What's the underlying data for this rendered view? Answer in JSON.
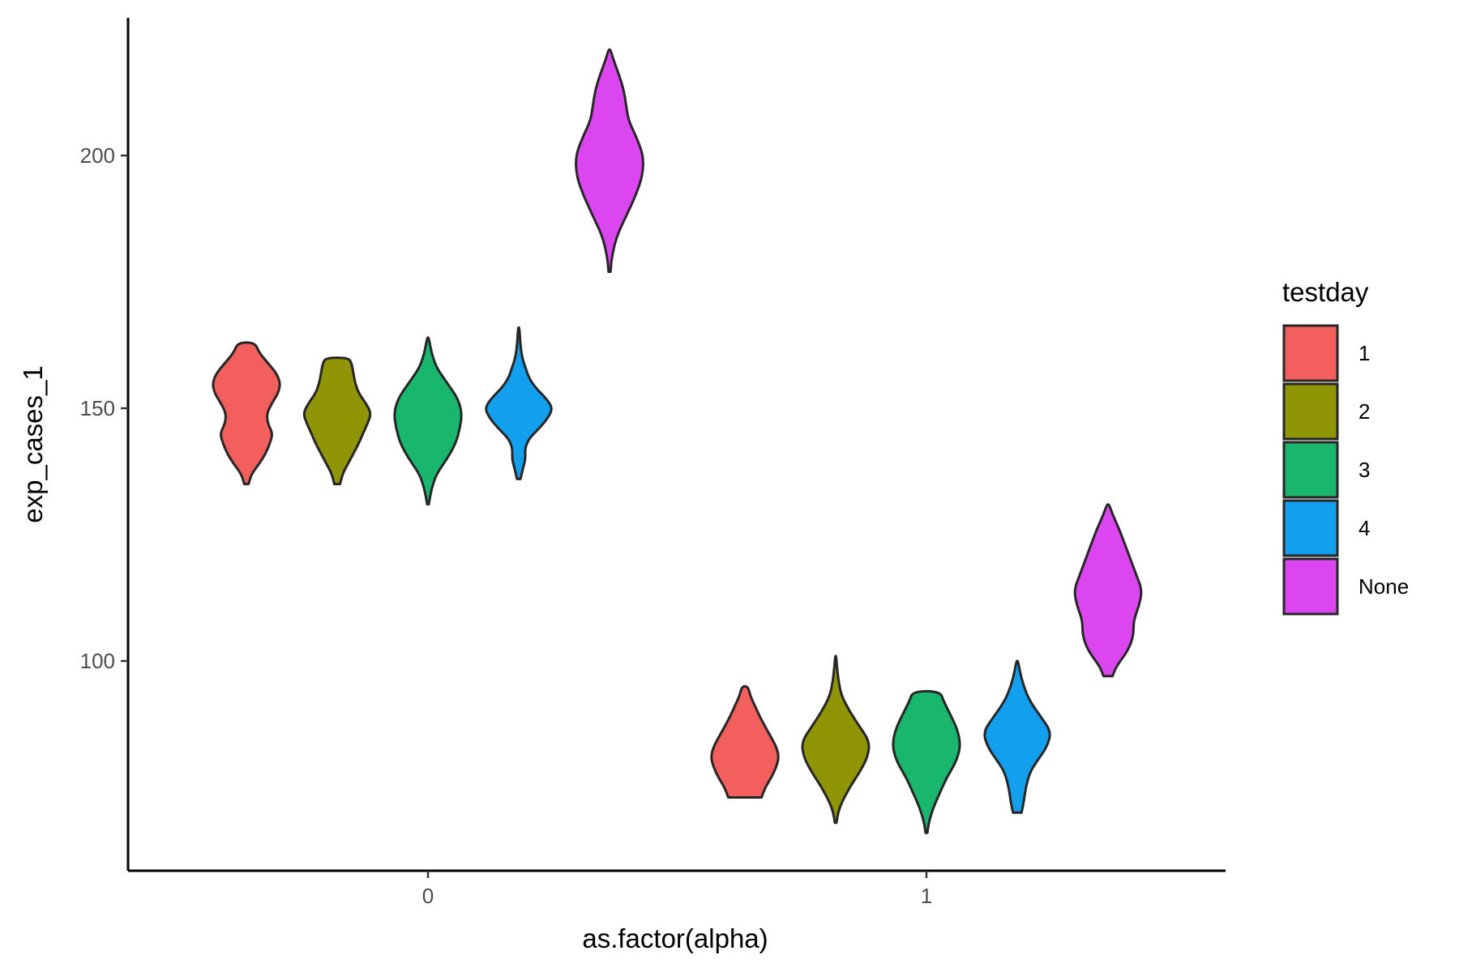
{
  "chart_data": {
    "type": "violin",
    "xlabel": "as.factor(alpha)",
    "ylabel": "exp_cases_1",
    "categories": [
      "0",
      "1"
    ],
    "y_ticks": [
      100,
      150,
      200
    ],
    "ylim": [
      59,
      227
    ],
    "grid": false,
    "legend": {
      "title": "testday",
      "placement": "right",
      "entries": [
        "1",
        "2",
        "3",
        "4",
        "None"
      ]
    },
    "colors": {
      "1": "#F25F5C",
      "2": "#8F9505",
      "3": "#19B66E",
      "4": "#129FEE",
      "None": "#DC46F0"
    },
    "series": [
      {
        "x": "0",
        "testday": "1",
        "min": 135,
        "max": 163,
        "median": 148,
        "density": [
          [
            135,
            0.05
          ],
          [
            137,
            0.12
          ],
          [
            139,
            0.3
          ],
          [
            141,
            0.45
          ],
          [
            143,
            0.55
          ],
          [
            145,
            0.62
          ],
          [
            147,
            0.5
          ],
          [
            149,
            0.48
          ],
          [
            151,
            0.6
          ],
          [
            153,
            0.75
          ],
          [
            155,
            0.8
          ],
          [
            157,
            0.7
          ],
          [
            159,
            0.5
          ],
          [
            161,
            0.3
          ],
          [
            163,
            0.2
          ]
        ]
      },
      {
        "x": "0",
        "testday": "2",
        "min": 135,
        "max": 160,
        "median": 148,
        "density": [
          [
            135,
            0.08
          ],
          [
            137,
            0.15
          ],
          [
            139,
            0.3
          ],
          [
            141,
            0.45
          ],
          [
            143,
            0.6
          ],
          [
            145,
            0.72
          ],
          [
            147,
            0.85
          ],
          [
            149,
            0.95
          ],
          [
            151,
            0.8
          ],
          [
            153,
            0.6
          ],
          [
            155,
            0.5
          ],
          [
            157,
            0.45
          ],
          [
            159,
            0.4
          ],
          [
            160,
            0.3
          ]
        ]
      },
      {
        "x": "0",
        "testday": "3",
        "min": 131,
        "max": 164,
        "median": 148,
        "density": [
          [
            131,
            0.02
          ],
          [
            134,
            0.08
          ],
          [
            137,
            0.2
          ],
          [
            140,
            0.45
          ],
          [
            143,
            0.65
          ],
          [
            146,
            0.75
          ],
          [
            149,
            0.8
          ],
          [
            152,
            0.7
          ],
          [
            155,
            0.45
          ],
          [
            158,
            0.2
          ],
          [
            161,
            0.08
          ],
          [
            164,
            0.02
          ]
        ]
      },
      {
        "x": "0",
        "testday": "4",
        "min": 136,
        "max": 166,
        "median": 150,
        "density": [
          [
            136,
            0.05
          ],
          [
            138,
            0.12
          ],
          [
            140,
            0.2
          ],
          [
            142,
            0.18
          ],
          [
            144,
            0.3
          ],
          [
            146,
            0.6
          ],
          [
            148,
            0.85
          ],
          [
            150,
            1.0
          ],
          [
            152,
            0.8
          ],
          [
            154,
            0.5
          ],
          [
            156,
            0.3
          ],
          [
            158,
            0.2
          ],
          [
            160,
            0.1
          ],
          [
            163,
            0.04
          ],
          [
            166,
            0.02
          ]
        ]
      },
      {
        "x": "0",
        "testday": "None",
        "min": 177,
        "max": 221,
        "median": 199,
        "density": [
          [
            177,
            0.02
          ],
          [
            180,
            0.05
          ],
          [
            184,
            0.15
          ],
          [
            188,
            0.35
          ],
          [
            192,
            0.55
          ],
          [
            196,
            0.7
          ],
          [
            200,
            0.72
          ],
          [
            204,
            0.55
          ],
          [
            207,
            0.4
          ],
          [
            210,
            0.35
          ],
          [
            213,
            0.3
          ],
          [
            216,
            0.2
          ],
          [
            219,
            0.08
          ],
          [
            221,
            0.02
          ]
        ]
      },
      {
        "x": "1",
        "testday": "1",
        "min": 73,
        "max": 95,
        "median": 82,
        "density": [
          [
            73,
            0.45
          ],
          [
            75,
            0.55
          ],
          [
            77,
            0.72
          ],
          [
            79,
            0.85
          ],
          [
            81,
            0.92
          ],
          [
            83,
            0.85
          ],
          [
            85,
            0.7
          ],
          [
            87,
            0.55
          ],
          [
            89,
            0.4
          ],
          [
            91,
            0.28
          ],
          [
            93,
            0.15
          ],
          [
            95,
            0.08
          ]
        ]
      },
      {
        "x": "1",
        "testday": "2",
        "min": 68,
        "max": 101,
        "median": 83,
        "density": [
          [
            68,
            0.02
          ],
          [
            70,
            0.06
          ],
          [
            72,
            0.15
          ],
          [
            75,
            0.35
          ],
          [
            78,
            0.6
          ],
          [
            81,
            0.8
          ],
          [
            84,
            0.85
          ],
          [
            87,
            0.6
          ],
          [
            90,
            0.35
          ],
          [
            93,
            0.15
          ],
          [
            96,
            0.07
          ],
          [
            99,
            0.03
          ],
          [
            101,
            0.01
          ]
        ]
      },
      {
        "x": "1",
        "testday": "3",
        "min": 66,
        "max": 94,
        "median": 83,
        "density": [
          [
            66,
            0.02
          ],
          [
            68,
            0.05
          ],
          [
            71,
            0.15
          ],
          [
            74,
            0.3
          ],
          [
            77,
            0.45
          ],
          [
            80,
            0.65
          ],
          [
            83,
            0.75
          ],
          [
            86,
            0.7
          ],
          [
            89,
            0.55
          ],
          [
            92,
            0.38
          ],
          [
            94,
            0.3
          ]
        ]
      },
      {
        "x": "1",
        "testday": "4",
        "min": 70,
        "max": 100,
        "median": 85,
        "density": [
          [
            70,
            0.1
          ],
          [
            72,
            0.15
          ],
          [
            75,
            0.2
          ],
          [
            78,
            0.3
          ],
          [
            80,
            0.45
          ],
          [
            83,
            0.7
          ],
          [
            86,
            0.8
          ],
          [
            89,
            0.55
          ],
          [
            92,
            0.3
          ],
          [
            95,
            0.15
          ],
          [
            98,
            0.06
          ],
          [
            100,
            0.02
          ]
        ]
      },
      {
        "x": "1",
        "testday": "None",
        "min": 97,
        "max": 131,
        "median": 112,
        "density": [
          [
            97,
            0.08
          ],
          [
            99,
            0.15
          ],
          [
            102,
            0.35
          ],
          [
            105,
            0.45
          ],
          [
            108,
            0.45
          ],
          [
            111,
            0.55
          ],
          [
            114,
            0.6
          ],
          [
            117,
            0.5
          ],
          [
            120,
            0.4
          ],
          [
            123,
            0.3
          ],
          [
            126,
            0.2
          ],
          [
            129,
            0.08
          ],
          [
            131,
            0.02
          ]
        ]
      }
    ]
  }
}
